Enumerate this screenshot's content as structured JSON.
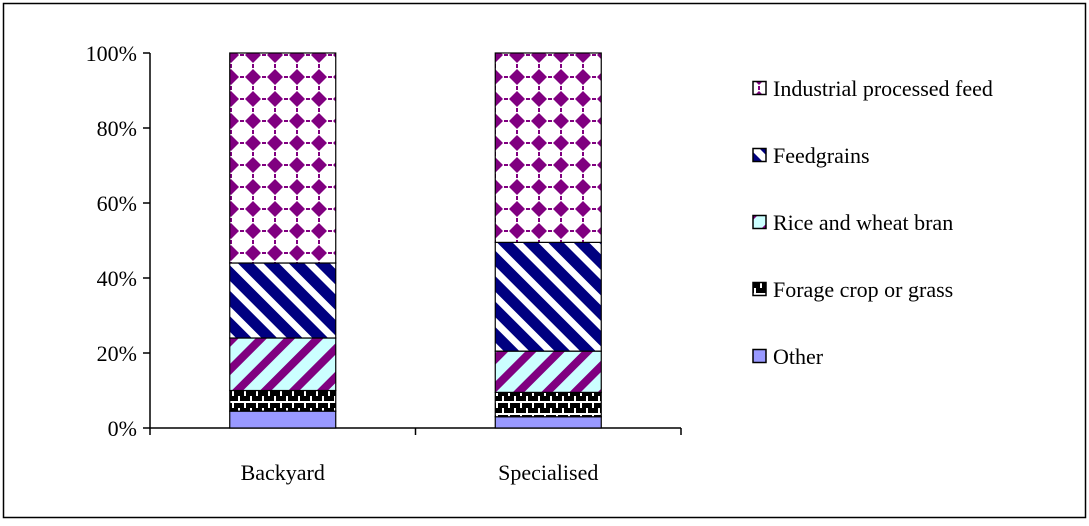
{
  "chart_data": {
    "type": "bar",
    "stacked": true,
    "percent_axis": true,
    "categories": [
      "Backyard",
      "Specialised"
    ],
    "series": [
      {
        "name": "Other",
        "values": [
          4.5,
          3.0
        ],
        "color": "#9999ff",
        "pattern": "solid"
      },
      {
        "name": "Forage crop or grass",
        "values": [
          5.5,
          6.5
        ],
        "color": "#000000",
        "pattern": "brick"
      },
      {
        "name": "Rice and wheat bran",
        "values": [
          14.0,
          11.0
        ],
        "color": "#800080",
        "pattern": "diagonal-stripes",
        "background": "#ccffff"
      },
      {
        "name": "Feedgrains",
        "values": [
          20.0,
          29.0
        ],
        "color": "#000080",
        "pattern": "wide-diagonal-stripes"
      },
      {
        "name": "Industrial processed feed",
        "values": [
          56.0,
          50.5
        ],
        "color": "#800080",
        "pattern": "dotted-diamonds"
      }
    ],
    "y_ticks": [
      "0%",
      "20%",
      "40%",
      "60%",
      "80%",
      "100%"
    ],
    "ylim": [
      0,
      100
    ],
    "legend_position": "right",
    "legend_order": [
      "Industrial processed feed",
      "Feedgrains",
      "Rice and wheat bran",
      "Forage crop or grass",
      "Other"
    ],
    "grid": false
  }
}
